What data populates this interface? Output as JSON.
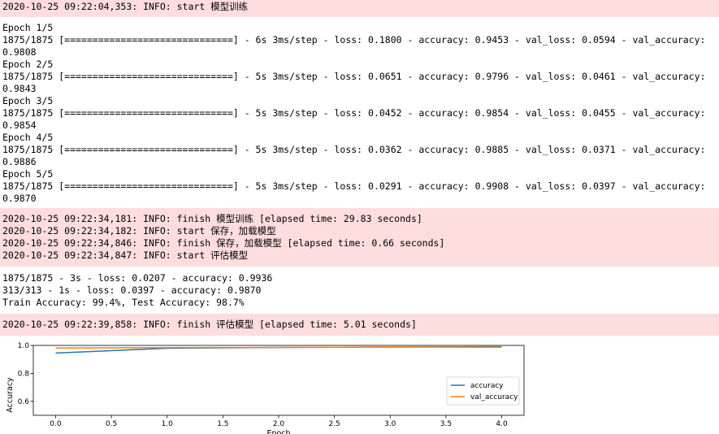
{
  "cell1": {
    "log_lines": [
      "2020-10-25 09:22:04,353: INFO: start 模型训练"
    ]
  },
  "cell2": {
    "lines": [
      "Epoch 1/5",
      "1875/1875 [==============================] - 6s 3ms/step - loss: 0.1800 - accuracy: 0.9453 - val_loss: 0.0594 - val_accuracy:",
      "0.9808",
      "Epoch 2/5",
      "1875/1875 [==============================] - 5s 3ms/step - loss: 0.0651 - accuracy: 0.9796 - val_loss: 0.0461 - val_accuracy:",
      "0.9843",
      "Epoch 3/5",
      "1875/1875 [==============================] - 5s 3ms/step - loss: 0.0452 - accuracy: 0.9854 - val_loss: 0.0455 - val_accuracy:",
      "0.9854",
      "Epoch 4/5",
      "1875/1875 [==============================] - 5s 3ms/step - loss: 0.0362 - accuracy: 0.9885 - val_loss: 0.0371 - val_accuracy:",
      "0.9886",
      "Epoch 5/5",
      "1875/1875 [==============================] - 5s 3ms/step - loss: 0.0291 - accuracy: 0.9908 - val_loss: 0.0397 - val_accuracy:",
      "0.9870"
    ]
  },
  "cell3": {
    "log_lines": [
      "2020-10-25 09:22:34,181: INFO: finish 模型训练 [elapsed time: 29.83 seconds]",
      "2020-10-25 09:22:34,182: INFO: start 保存，加载模型",
      "2020-10-25 09:22:34,846: INFO: finish 保存，加载模型 [elapsed time: 0.66 seconds]",
      "2020-10-25 09:22:34,847: INFO: start 评估模型"
    ]
  },
  "cell4": {
    "lines": [
      "1875/1875 - 3s - loss: 0.0207 - accuracy: 0.9936",
      "313/313 - 1s - loss: 0.0397 - accuracy: 0.9870",
      "Train Accuracy: 99.4%, Test Accuracy: 98.7%"
    ]
  },
  "cell5": {
    "log_lines": [
      "2020-10-25 09:22:39,858: INFO: finish 评估模型 [elapsed time: 5.01 seconds]"
    ]
  },
  "colors": {
    "log_background": "#fddddd",
    "accuracy": "#1f77b4",
    "val_accuracy": "#ff7f0e"
  },
  "chart_data": {
    "type": "line",
    "title": "",
    "xlabel": "Epoch",
    "ylabel": "Accuracy",
    "x": [
      0,
      1,
      2,
      3,
      4
    ],
    "xlim": [
      -0.2,
      4.2
    ],
    "ylim": [
      0.5,
      1.0
    ],
    "xticks": [
      "0.0",
      "0.5",
      "1.0",
      "1.5",
      "2.0",
      "2.5",
      "3.0",
      "3.5",
      "4.0"
    ],
    "yticks": [
      "0.6",
      "0.8",
      "1.0"
    ],
    "grid": false,
    "legend_position": "lower right",
    "series": [
      {
        "name": "accuracy",
        "values": [
          0.9453,
          0.9796,
          0.9854,
          0.9885,
          0.9908
        ]
      },
      {
        "name": "val_accuracy",
        "values": [
          0.9808,
          0.9843,
          0.9854,
          0.9886,
          0.987
        ]
      }
    ]
  }
}
